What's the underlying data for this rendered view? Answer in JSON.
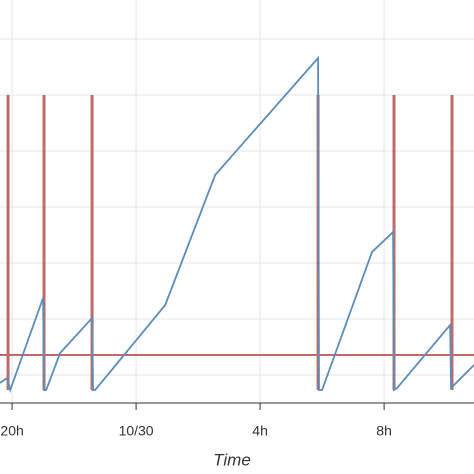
{
  "chart_data": {
    "type": "line",
    "xlabel": "Time",
    "x": [
      19.61,
      19.84,
      19.94,
      21.0,
      21.03,
      21.1,
      21.55,
      22.58,
      22.61,
      22.68,
      24.94,
      26.55,
      29.87,
      29.9,
      30.0,
      31.61,
      32.29,
      32.32,
      32.42,
      34.13,
      34.16,
      34.9
    ],
    "series": [
      {
        "color": "#5b8db8",
        "values": [
          17,
          22,
          10,
          102,
          10,
          10,
          47,
          82,
          10,
          10,
          95,
          225,
          342,
          10,
          10,
          148,
          168,
          10,
          12,
          75,
          12,
          35
        ]
      }
    ],
    "events": {
      "color": "#c0696b",
      "x": [
        19.87,
        21.03,
        22.58,
        29.87,
        32.32,
        34.19
      ],
      "values": [
        305,
        305,
        305,
        305,
        305,
        305
      ]
    },
    "threshold": {
      "color": "#c0696b",
      "value": 45
    },
    "xlim": [
      19.61,
      34.9
    ],
    "ylim": [
      0,
      400
    ],
    "xticks": [
      {
        "value": 20,
        "label": "20h"
      },
      {
        "value": 24,
        "label": "10/30"
      },
      {
        "value": 28,
        "label": "4h"
      },
      {
        "value": 32,
        "label": "8h"
      }
    ],
    "ygrid": [
      25,
      81,
      137,
      193,
      249,
      305,
      361
    ],
    "grid": true
  }
}
